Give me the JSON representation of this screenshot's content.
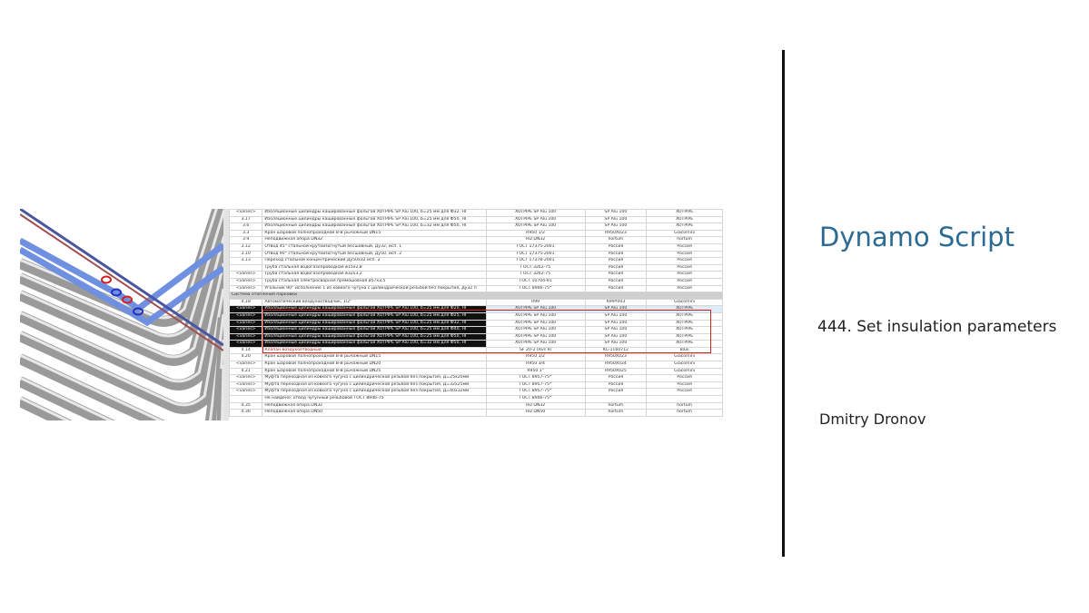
{
  "slide": {
    "title": "Dynamo Script",
    "subtitle": "444. Set insulation parameters",
    "author": "Dmitry Dronov",
    "title_color": "#2b6a92"
  },
  "schedule": {
    "rows": [
      [
        "<varies>",
        "Изоляционные цилиндры кашированные фольгой XOTPIPE SP Alu 100, b=25 мм для Ф32, НГ",
        "XOTPIPE SP Alu 100",
        "SP Alu 100",
        "XOTPIPE"
      ],
      [
        "3.17",
        "Изоляционные цилиндры кашированные фольгой XOTPIPE SP Alu 100, b=25 мм для Ф50, НГ",
        "XOTPIPE SP Alu 100",
        "SP Alu 100",
        "XOTPIPE"
      ],
      [
        "3.6",
        "Изоляционные цилиндры кашированные фольгой XOTPIPE SP Alu 100, b=32 мм для Ф50, НГ",
        "XOTPIPE SP Alu 100",
        "SP Alu 100",
        "XOTPIPE"
      ],
      [
        "3.3",
        "Кран шаровой полнопроходной В-В рычажный DN15",
        "R950 1/2",
        "R950X023",
        "Giacomini"
      ],
      [
        "3.9",
        "Неподвижная опора DN32",
        "HD DN32",
        "hortum",
        "hortum"
      ],
      [
        "3.12",
        "Отвод 45° стальной крутоизогнутый бесшовный, Ду32, исп. 1",
        "ГОСТ 17375-2001",
        "Россия",
        "Россия"
      ],
      [
        "3.10",
        "Отвод 90° стальной крутоизогнутый бесшовный, Ду50, исп. 2",
        "ГОСТ 17375-2001",
        "Россия",
        "Россия"
      ],
      [
        "3.13",
        "Переход стальной концентрический Ду50х32 исп. 2",
        "ГОСТ 17378-2001",
        "Россия",
        "Россия"
      ],
      [
        "",
        "Труба стальная водогазопроводная ø15х2,8",
        "ГОСТ 3262-75",
        "Россия",
        "Россия"
      ],
      [
        "<varies>",
        "Труба стальная водогазопроводная ø32х3,2",
        "ГОСТ 3262-75",
        "Россия",
        "Россия"
      ],
      [
        "<varies>",
        "Труба стальная электросварная прямошовная ø57х3,5",
        "ГОСТ 10704-91",
        "Россия",
        "Россия"
      ],
      [
        "<varies>",
        "Угольник 90° исполнение 1 из ковкого чугуна с цилиндрической резьбой без покрытия, Ду32 п",
        "ГОСТ 8946-75*",
        "Россия",
        "Россия"
      ],
      {
        "group": "Система отопления парковки"
      },
      [
        "4.18",
        "Автоматический воздухоотводчик, 1/2\"",
        "R99",
        "R99Y003",
        "Giacomini"
      ],
      {
        "state": "selected-first",
        "cells": [
          "<varies>",
          "Изоляционные цилиндры кашированные фольгой XOTPIPE SP Alu 100, b=25 мм для Ф20, НГ",
          "XOTPIPE SP Alu 100",
          "SP Alu 100",
          "XOTPIPE"
        ]
      },
      {
        "state": "selected",
        "cells": [
          "<varies>",
          "Изоляционные цилиндры кашированные фольгой XOTPIPE SP Alu 100, b=25 мм для Ф25, НГ",
          "XOTPIPE SP Alu 100",
          "SP Alu 100",
          "XOTPIPE"
        ]
      },
      {
        "state": "selected",
        "cells": [
          "<varies>",
          "Изоляционные цилиндры кашированные фольгой XOTPIPE SP Alu 100, b=25 мм для Ф32, НГ",
          "XOTPIPE SP Alu 100",
          "SP Alu 100",
          "XOTPIPE"
        ]
      },
      {
        "state": "selected",
        "cells": [
          "<varies>",
          "Изоляционные цилиндры кашированные фольгой XOTPIPE SP Alu 100, b=25 мм для Ф40, НГ",
          "XOTPIPE SP Alu 100",
          "SP Alu 100",
          "XOTPIPE"
        ]
      },
      {
        "state": "selected",
        "cells": [
          "<varies>",
          "Изоляционные цилиндры кашированные фольгой XOTPIPE SP Alu 100, b=25 мм для Ф50, НГ",
          "XOTPIPE SP Alu 100",
          "SP Alu 100",
          "XOTPIPE"
        ]
      },
      {
        "state": "selected",
        "cells": [
          "<varies>",
          "Изоляционные цилиндры кашированные фольгой XOTPIPE SP Alu 100, b=32 мм для Ф50, НГ",
          "XOTPIPE SP Alu 100",
          "SP Alu 100",
          "XOTPIPE"
        ]
      },
      {
        "state": "red",
        "cells": [
          "4.14",
          "Клапан воздухоотводный",
          "SF 20-2 (Rvs 9)",
          "KC-1160712",
          "Baxi"
        ]
      },
      [
        "4.20",
        "Кран шаровой полнопроходной В-В рычажный DN15",
        "R950 1/2",
        "R950X023",
        "Giacomini"
      ],
      [
        "<varies>",
        "Кран шаровой полнопроходной В-В рычажный DN20",
        "R950 3/4",
        "R950X024",
        "Giacomini"
      ],
      [
        "4.21",
        "Кран шаровой полнопроходной В-В рычажный DN25",
        "R950 1\"",
        "R950X025",
        "Giacomini"
      ],
      [
        "<varies>",
        "Муфта переходная из ковкого чугуна с цилиндрической резьбой без покрытия, Д=25х20мм",
        "ГОСТ 8957-75*",
        "Россия",
        "Россия"
      ],
      [
        "<varies>",
        "Муфта переходная из ковкого чугуна с цилиндрической резьбой без покрытия, Д=32х25мм",
        "ГОСТ 8957-75*",
        "Россия",
        "Россия"
      ],
      [
        "<varies>",
        "Муфта переходная из ковкого чугуна с цилиндрической резьбой без покрытия, Д=40х32мм",
        "ГОСТ 8957-75*",
        "Россия",
        "Россия"
      ],
      [
        "",
        "Не найдено: отвод чугунный резьбовой ГОСТ 8946-75",
        "ГОСТ 8946-75*",
        "",
        ""
      ],
      [
        "4.35",
        "Неподвижная опора DN32",
        "HD DN32",
        "hortum",
        "hortum"
      ],
      [
        "4.36",
        "Неподвижная опора DN50",
        "HD DN50",
        "hortum",
        "hortum"
      ]
    ]
  }
}
